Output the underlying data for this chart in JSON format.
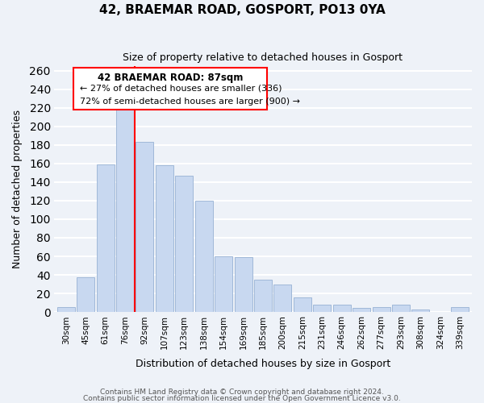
{
  "title": "42, BRAEMAR ROAD, GOSPORT, PO13 0YA",
  "subtitle": "Size of property relative to detached houses in Gosport",
  "xlabel": "Distribution of detached houses by size in Gosport",
  "ylabel": "Number of detached properties",
  "bar_labels": [
    "30sqm",
    "45sqm",
    "61sqm",
    "76sqm",
    "92sqm",
    "107sqm",
    "123sqm",
    "138sqm",
    "154sqm",
    "169sqm",
    "185sqm",
    "200sqm",
    "215sqm",
    "231sqm",
    "246sqm",
    "262sqm",
    "277sqm",
    "293sqm",
    "308sqm",
    "324sqm",
    "339sqm"
  ],
  "bar_values": [
    5,
    37,
    159,
    220,
    183,
    158,
    147,
    120,
    60,
    59,
    35,
    30,
    16,
    8,
    8,
    4,
    5,
    8,
    3,
    0,
    5
  ],
  "bar_color": "#c8d8f0",
  "bar_edge_color": "#a0b8d8",
  "vline_color": "red",
  "annotation_title": "42 BRAEMAR ROAD: 87sqm",
  "annotation_line1": "← 27% of detached houses are smaller (336)",
  "annotation_line2": "72% of semi-detached houses are larger (900) →",
  "annotation_box_color": "white",
  "annotation_box_edge_color": "red",
  "ylim": [
    0,
    265
  ],
  "yticks": [
    0,
    20,
    40,
    60,
    80,
    100,
    120,
    140,
    160,
    180,
    200,
    220,
    240,
    260
  ],
  "footnote1": "Contains HM Land Registry data © Crown copyright and database right 2024.",
  "footnote2": "Contains public sector information licensed under the Open Government Licence v3.0.",
  "background_color": "#eef2f8",
  "grid_color": "white"
}
